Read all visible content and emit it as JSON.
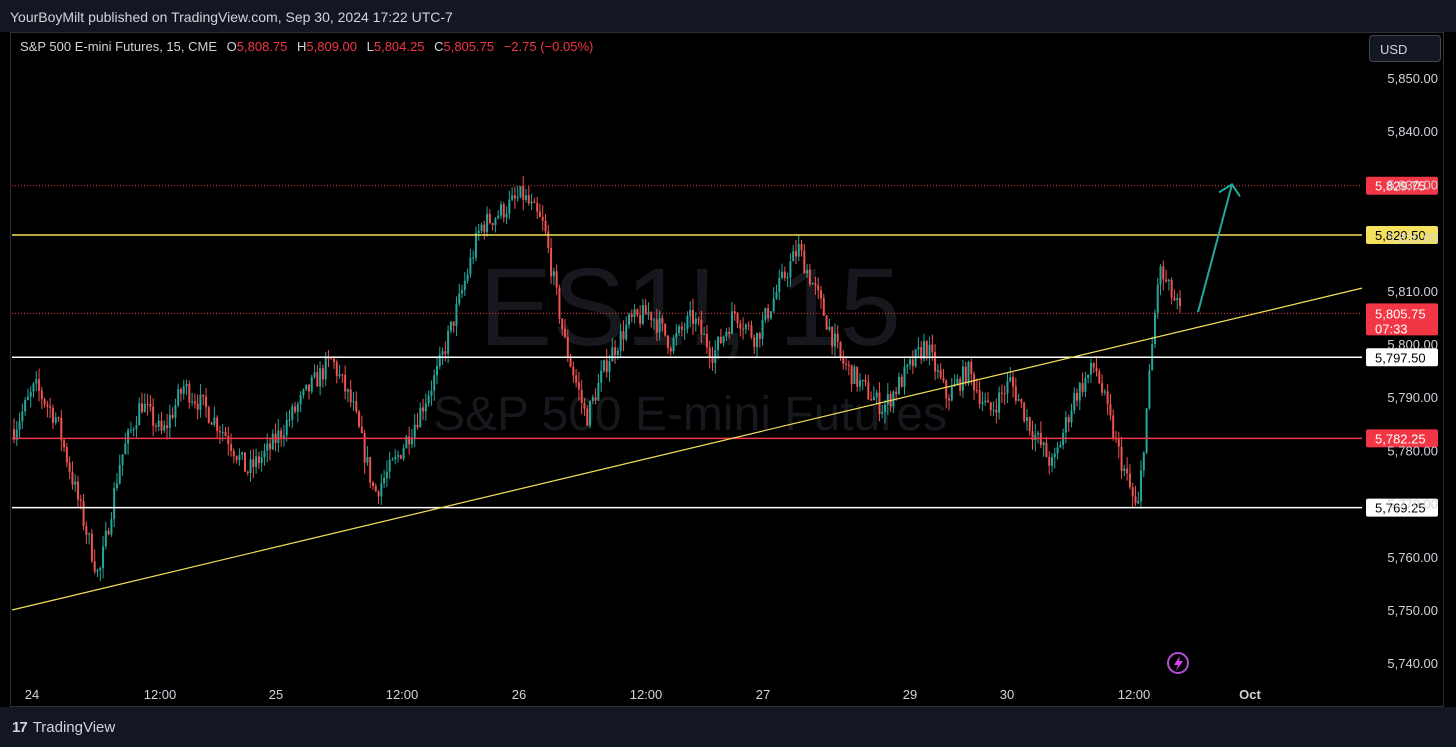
{
  "publisher": "YourBoyMilt published on TradingView.com, Sep 30, 2024 17:22 UTC-7",
  "legend": {
    "symbol": "S&P 500 E-mini Futures, 15, CME",
    "open_label": "O",
    "open": "5,808.75",
    "high_label": "H",
    "high": "5,809.00",
    "low_label": "L",
    "low": "5,804.25",
    "close_label": "C",
    "close": "5,805.75",
    "change": "−2.75 (−0.05%)"
  },
  "currency_button": "USD",
  "watermark": {
    "ticker": "ES1!, 15",
    "name": "S&P 500 E-mini Futures"
  },
  "footer_brand": "TradingView",
  "colors": {
    "up": "#26a69a",
    "down": "#ef5350",
    "yellow": "#f5e15b",
    "white": "#ffffff",
    "red_level": "#f23645",
    "arrow": "#26a69a",
    "background": "#000000"
  },
  "chart_data": {
    "type": "candlestick",
    "timeframe": "15",
    "y_range": [
      5735,
      5856
    ],
    "y_ticks": [
      "5,740.00",
      "5,750.00",
      "5,760.00",
      "5,770.00",
      "5,780.00",
      "5,790.00",
      "5,800.00",
      "5,810.00",
      "5,820.00",
      "5,830.00",
      "5,840.00",
      "5,850.00"
    ],
    "x_ticks": [
      "24",
      "12:00",
      "25",
      "12:00",
      "26",
      "12:00",
      "27",
      "29",
      "30",
      "12:00",
      "Oct"
    ],
    "price_levels": [
      {
        "value": 5829.75,
        "label": "5,829.75",
        "style": "dotted",
        "color": "red"
      },
      {
        "value": 5820.5,
        "label": "5,820.50",
        "style": "solid",
        "color": "yellow"
      },
      {
        "value": 5805.75,
        "label": "5,805.75",
        "countdown": "07:33",
        "style": "dotted",
        "color": "red"
      },
      {
        "value": 5797.5,
        "label": "5,797.50",
        "style": "solid",
        "color": "white"
      },
      {
        "value": 5782.25,
        "label": "5,782.25",
        "style": "solid",
        "color": "red"
      },
      {
        "value": 5769.25,
        "label": "5,769.25",
        "style": "solid",
        "color": "white"
      }
    ],
    "trendline": {
      "color": "yellow",
      "from": 5750.0,
      "to": 5810.5
    },
    "projection_arrow": {
      "from": 5806.0,
      "to": 5830.0,
      "color": "teal"
    },
    "series": [
      {
        "x": "24",
        "close": 5784
      },
      {
        "x": "24",
        "close": 5792
      },
      {
        "x": "24",
        "close": 5786
      },
      {
        "x": "24",
        "close": 5771
      },
      {
        "x": "24",
        "close": 5756
      },
      {
        "x": "24",
        "close": 5778
      },
      {
        "x": "24",
        "close": 5789
      },
      {
        "x": "12:00",
        "close": 5783
      },
      {
        "x": "12:00",
        "close": 5792
      },
      {
        "x": "12:00",
        "close": 5788
      },
      {
        "x": "12:00",
        "close": 5783
      },
      {
        "x": "25",
        "close": 5776
      },
      {
        "x": "25",
        "close": 5780
      },
      {
        "x": "25",
        "close": 5786
      },
      {
        "x": "25",
        "close": 5792
      },
      {
        "x": "25",
        "close": 5797
      },
      {
        "x": "25",
        "close": 5788
      },
      {
        "x": "12:00",
        "close": 5772
      },
      {
        "x": "12:00",
        "close": 5778
      },
      {
        "x": "12:00",
        "close": 5786
      },
      {
        "x": "12:00",
        "close": 5795
      },
      {
        "x": "12:00",
        "close": 5808
      },
      {
        "x": "26",
        "close": 5822
      },
      {
        "x": "26",
        "close": 5825
      },
      {
        "x": "26",
        "close": 5828
      },
      {
        "x": "26",
        "close": 5822
      },
      {
        "x": "26",
        "close": 5800
      },
      {
        "x": "12:00",
        "close": 5786
      },
      {
        "x": "12:00",
        "close": 5797
      },
      {
        "x": "12:00",
        "close": 5804
      },
      {
        "x": "12:00",
        "close": 5806
      },
      {
        "x": "12:00",
        "close": 5800
      },
      {
        "x": "12:00",
        "close": 5805
      },
      {
        "x": "12:00",
        "close": 5798
      },
      {
        "x": "27",
        "close": 5806
      },
      {
        "x": "27",
        "close": 5801
      },
      {
        "x": "27",
        "close": 5810
      },
      {
        "x": "27",
        "close": 5818
      },
      {
        "x": "27",
        "close": 5808
      },
      {
        "x": "27",
        "close": 5797
      },
      {
        "x": "27",
        "close": 5792
      },
      {
        "x": "29",
        "close": 5788
      },
      {
        "x": "29",
        "close": 5794
      },
      {
        "x": "29",
        "close": 5800
      },
      {
        "x": "29",
        "close": 5790
      },
      {
        "x": "29",
        "close": 5795
      },
      {
        "x": "29",
        "close": 5787
      },
      {
        "x": "30",
        "close": 5793
      },
      {
        "x": "30",
        "close": 5784
      },
      {
        "x": "30",
        "close": 5777
      },
      {
        "x": "30",
        "close": 5790
      },
      {
        "x": "30",
        "close": 5796
      },
      {
        "x": "30",
        "close": 5781
      },
      {
        "x": "12:00",
        "close": 5768
      },
      {
        "x": "12:00",
        "close": 5814
      },
      {
        "x": "12:00",
        "close": 5806
      }
    ]
  }
}
